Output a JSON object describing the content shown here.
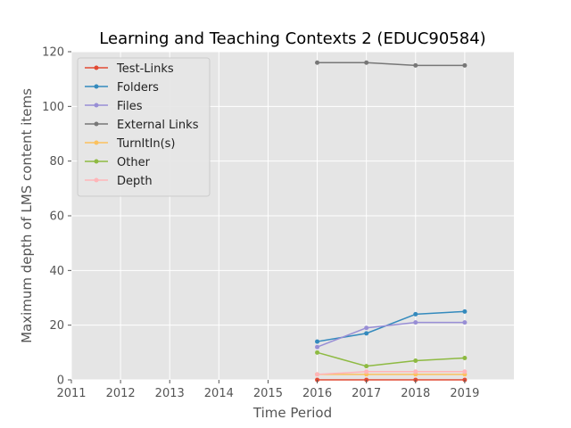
{
  "chart_data": {
    "type": "line",
    "title": "Learning and Teaching Contexts 2 (EDUC90584)",
    "xlabel": "Time Period",
    "ylabel": "Maximum depth of LMS content items",
    "xlim": [
      2011,
      2020
    ],
    "ylim": [
      0,
      120
    ],
    "xticks": [
      "2011",
      "2012",
      "2013",
      "2014",
      "2015",
      "2016",
      "2017",
      "2018",
      "2019"
    ],
    "yticks": [
      "0",
      "20",
      "40",
      "60",
      "80",
      "100",
      "120"
    ],
    "x": [
      2016,
      2017,
      2018,
      2019
    ],
    "grid": true,
    "legend_position": "top-left",
    "series": [
      {
        "name": "Test-Links",
        "color": "#e24a33",
        "values": [
          0,
          0,
          0,
          0
        ]
      },
      {
        "name": "Folders",
        "color": "#348abd",
        "values": [
          14,
          17,
          24,
          25
        ]
      },
      {
        "name": "Files",
        "color": "#988ed5",
        "values": [
          12,
          19,
          21,
          21
        ]
      },
      {
        "name": "External Links",
        "color": "#777777",
        "values": [
          116,
          116,
          115,
          115
        ]
      },
      {
        "name": "TurnItIn(s)",
        "color": "#fbc15e",
        "values": [
          2,
          2,
          2,
          2
        ]
      },
      {
        "name": "Other",
        "color": "#8eba42",
        "values": [
          10,
          5,
          7,
          8
        ]
      },
      {
        "name": "Depth",
        "color": "#ffb5b8",
        "values": [
          2,
          3,
          3,
          3
        ]
      }
    ]
  }
}
